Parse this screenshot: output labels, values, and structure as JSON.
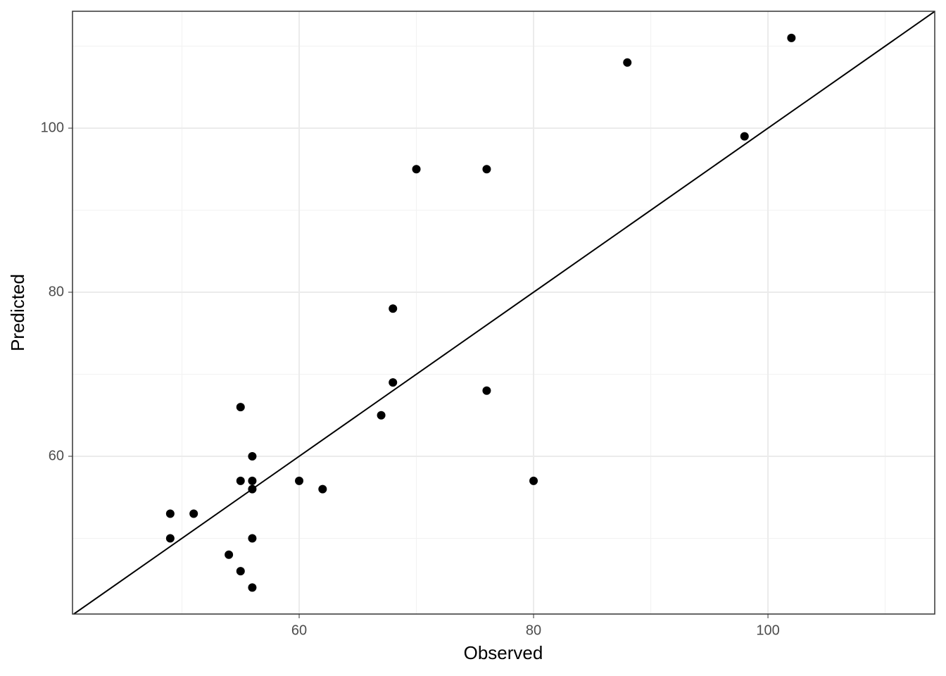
{
  "chart_data": {
    "type": "scatter",
    "x_label": "Observed",
    "y_label": "Predicted",
    "x": [
      102,
      88,
      98,
      70,
      76,
      68,
      68,
      76,
      67,
      55,
      56,
      55,
      56,
      56,
      60,
      62,
      80,
      49,
      51,
      49,
      56,
      54,
      55,
      56
    ],
    "values": [
      111,
      108,
      99,
      95,
      95,
      78,
      69,
      68,
      65,
      66,
      60,
      57,
      57,
      56,
      57,
      56,
      57,
      53,
      53,
      50,
      50,
      48,
      46,
      44
    ],
    "color": "#000000",
    "xlim": [
      40.66,
      114.23
    ],
    "ylim": [
      40.77,
      114.25
    ],
    "xticks": [
      60,
      80,
      100
    ],
    "yticks": [
      60,
      80,
      100
    ],
    "x_minor_grid": [
      50,
      70,
      90,
      110
    ],
    "y_minor_grid": [
      50,
      70,
      90,
      110
    ],
    "grid": true,
    "identity_line": true
  }
}
